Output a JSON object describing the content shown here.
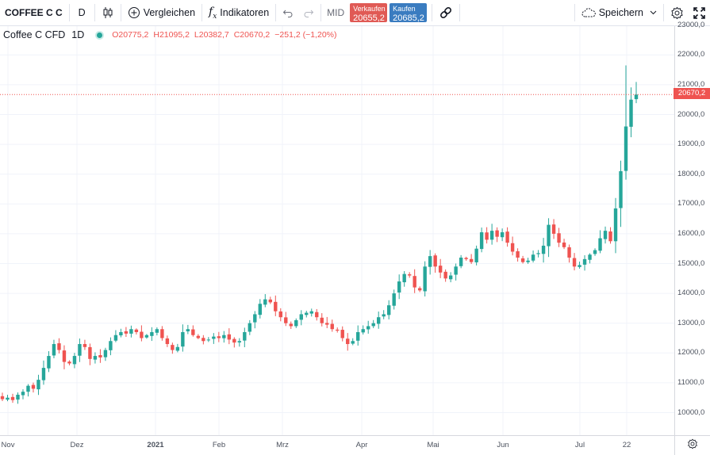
{
  "toolbar": {
    "symbol": "COFFEE C C",
    "interval": "D",
    "compare_label": "Vergleichen",
    "indicators_label": "Indikatoren",
    "price_type": "MID",
    "sell": {
      "label": "Verkaufen",
      "value": "20655,2"
    },
    "buy": {
      "label": "Kaufen",
      "value": "20685,2"
    },
    "save_label": "Speichern",
    "icons": [
      "candles-icon",
      "plus-circle-icon",
      "fx-icon",
      "undo-icon",
      "redo-icon",
      "link-icon",
      "cloud-icon",
      "chevron-down-icon",
      "gear-icon",
      "fullscreen-icon"
    ]
  },
  "legend": {
    "name": "Coffee C CFD",
    "interval": "1D",
    "open": "O20775,2",
    "high": "H21095,2",
    "low": "L20382,7",
    "close": "C20670,2",
    "change": "−251,2 (−1,20%)"
  },
  "last_price_label": "20670,2",
  "colors": {
    "up": "#26a69a",
    "down": "#ef5350",
    "grid": "#f0f3fa"
  },
  "chart_data": {
    "type": "candlestick",
    "title": "Coffee C CFD",
    "interval": "1D",
    "ylim": [
      9500,
      23500
    ],
    "y_ticks": [
      "10000,0",
      "11000,0",
      "12000,0",
      "13000,0",
      "14000,0",
      "15000,0",
      "16000,0",
      "17000,0",
      "18000,0",
      "19000,0",
      "20000,0",
      "21000,0",
      "22000,0",
      "23000,0"
    ],
    "x_ticks": [
      "Nov",
      "Dez",
      "2021",
      "Feb",
      "Mrz",
      "Apr",
      "Mai",
      "Jun",
      "Jul",
      "22"
    ],
    "last_price": 20670.2,
    "close_series": [
      10450,
      10500,
      10420,
      10600,
      10700,
      10900,
      10800,
      11100,
      11500,
      11900,
      12300,
      12100,
      11700,
      11650,
      11900,
      12300,
      12200,
      11800,
      11900,
      11850,
      12100,
      12400,
      12600,
      12700,
      12650,
      12800,
      12700,
      12500,
      12600,
      12700,
      12800,
      12500,
      12300,
      12100,
      12200,
      12700,
      12800,
      12600,
      12500,
      12400,
      12450,
      12550,
      12500,
      12600,
      12450,
      12350,
      12400,
      12700,
      13000,
      13300,
      13650,
      13800,
      13700,
      13400,
      13200,
      13000,
      12900,
      13100,
      13300,
      13350,
      13400,
      13200,
      13000,
      12950,
      12800,
      12750,
      12500,
      12300,
      12400,
      12700,
      12800,
      12900,
      13000,
      13200,
      13300,
      13600,
      14000,
      14400,
      14650,
      14600,
      14200,
      14100,
      14900,
      15250,
      14900,
      14700,
      14500,
      14600,
      14900,
      15200,
      15150,
      15050,
      15500,
      16050,
      15800,
      16100,
      15900,
      16050,
      15700,
      15400,
      15200,
      15050,
      15100,
      15300,
      15350,
      15600,
      16300,
      16000,
      15700,
      15550,
      15200,
      14900,
      14950,
      15150,
      15300,
      15450,
      15850,
      16100,
      15750,
      16850,
      18100,
      19600,
      20500,
      20670
    ]
  }
}
